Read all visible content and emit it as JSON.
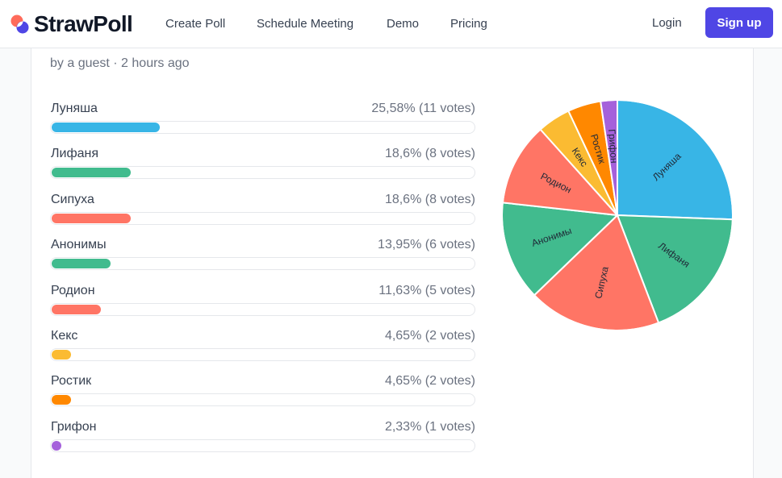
{
  "brand": {
    "name": "StrawPoll",
    "logo_colors": [
      "#ff6b5b",
      "#4f46e5"
    ]
  },
  "nav": {
    "links": [
      "Create Poll",
      "Schedule Meeting",
      "Demo",
      "Pricing"
    ],
    "login": "Login",
    "signup": "Sign up"
  },
  "poll": {
    "meta": "by a guest · 2 hours ago",
    "options": [
      {
        "label": "Луняша",
        "stat": "25,58% (11 votes)",
        "votes": 11,
        "percent": 25.58,
        "color": "#38b5e6"
      },
      {
        "label": "Лифаня",
        "stat": "18,6% (8 votes)",
        "votes": 8,
        "percent": 18.6,
        "color": "#41bb8e"
      },
      {
        "label": "Сипуха",
        "stat": "18,6% (8 votes)",
        "votes": 8,
        "percent": 18.6,
        "color": "#ff7565"
      },
      {
        "label": "Анонимы",
        "stat": "13,95% (6 votes)",
        "votes": 6,
        "percent": 13.95,
        "color": "#41bb8e"
      },
      {
        "label": "Родион",
        "stat": "11,63% (5 votes)",
        "votes": 5,
        "percent": 11.63,
        "color": "#ff7565"
      },
      {
        "label": "Кекс",
        "stat": "4,65% (2 votes)",
        "votes": 2,
        "percent": 4.65,
        "color": "#fbbb32"
      },
      {
        "label": "Ростик",
        "stat": "4,65% (2 votes)",
        "votes": 2,
        "percent": 4.65,
        "color": "#ff8800"
      },
      {
        "label": "Грифон",
        "stat": "2,33% (1 votes)",
        "votes": 1,
        "percent": 2.33,
        "color": "#a561db"
      }
    ]
  },
  "chart_data": {
    "type": "pie",
    "categories": [
      "Луняша",
      "Лифаня",
      "Сипуха",
      "Анонимы",
      "Родион",
      "Кекс",
      "Ростик",
      "Грифон"
    ],
    "values": [
      11,
      8,
      8,
      6,
      5,
      2,
      2,
      1
    ],
    "colors": [
      "#38b5e6",
      "#41bb8e",
      "#ff7565",
      "#41bb8e",
      "#ff7565",
      "#fbbb32",
      "#ff8800",
      "#a561db"
    ]
  }
}
